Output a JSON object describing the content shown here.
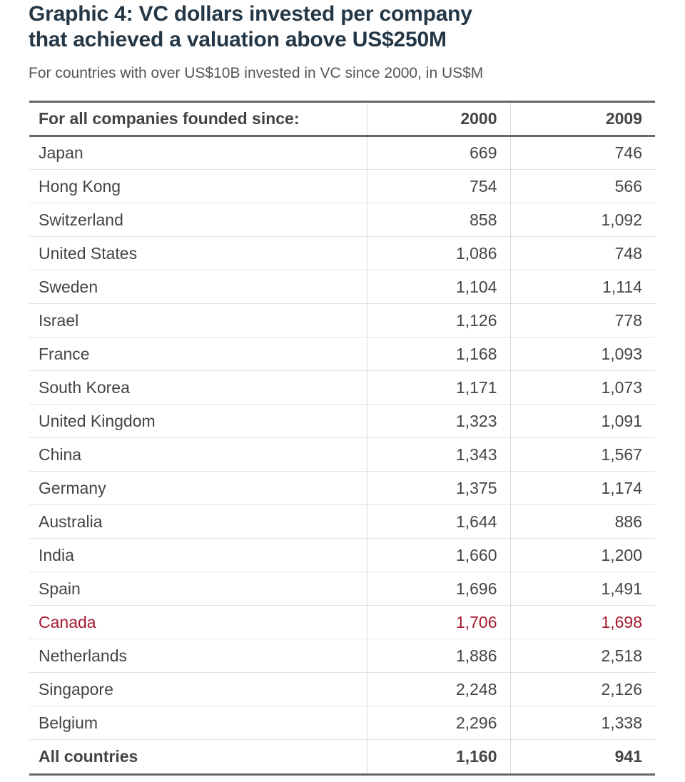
{
  "title_line1": "Graphic 4: VC dollars invested per company",
  "title_line2": "that achieved a valuation above US$250M",
  "subtitle": "For countries with over US$10B invested in VC since 2000, in US$M",
  "highlight_color": "#a6192e",
  "chart_data": {
    "type": "table",
    "columns": [
      "For all companies founded since:",
      "2000",
      "2009"
    ],
    "rows": [
      [
        "Japan",
        "669",
        "746"
      ],
      [
        "Hong Kong",
        "754",
        "566"
      ],
      [
        "Switzerland",
        "858",
        "1,092"
      ],
      [
        "United States",
        "1,086",
        "748"
      ],
      [
        "Sweden",
        "1,104",
        "1,114"
      ],
      [
        "Israel",
        "1,126",
        "778"
      ],
      [
        "France",
        "1,168",
        "1,093"
      ],
      [
        "South Korea",
        "1,171",
        "1,073"
      ],
      [
        "United Kingdom",
        "1,323",
        "1,091"
      ],
      [
        "China",
        "1,343",
        "1,567"
      ],
      [
        "Germany",
        "1,375",
        "1,174"
      ],
      [
        "Australia",
        "1,644",
        "886"
      ],
      [
        "India",
        "1,660",
        "1,200"
      ],
      [
        "Spain",
        "1,696",
        "1,491"
      ],
      [
        "Canada",
        "1,706",
        "1,698"
      ],
      [
        "Netherlands",
        "1,886",
        "2,518"
      ],
      [
        "Singapore",
        "2,248",
        "2,126"
      ],
      [
        "Belgium",
        "2,296",
        "1,338"
      ]
    ],
    "total": [
      "All countries",
      "1,160",
      "941"
    ],
    "highlighted_row": "Canada"
  }
}
